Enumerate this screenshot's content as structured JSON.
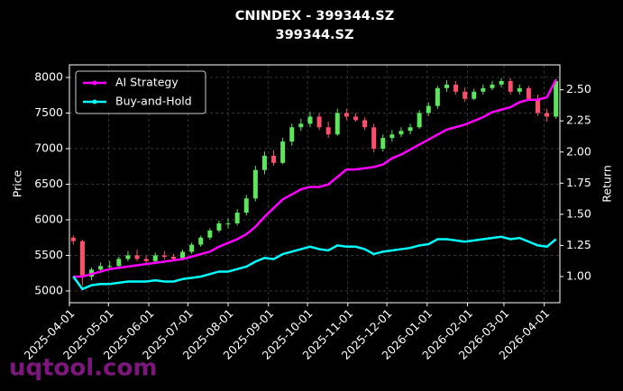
{
  "chart_data": {
    "type": "candlestick",
    "title": "CNINDEX - 399344.SZ",
    "subtitle": "399344.SZ",
    "y_label": "Price",
    "y2_label": "Return",
    "watermark": "uqtool.com",
    "x": [
      "2025-04-04",
      "2025-04-11",
      "2025-04-18",
      "2025-04-25",
      "2025-05-02",
      "2025-05-09",
      "2025-05-16",
      "2025-05-23",
      "2025-05-30",
      "2025-06-06",
      "2025-06-13",
      "2025-06-20",
      "2025-06-27",
      "2025-07-04",
      "2025-07-11",
      "2025-07-18",
      "2025-07-25",
      "2025-08-01",
      "2025-08-08",
      "2025-08-15",
      "2025-08-22",
      "2025-08-29",
      "2025-09-05",
      "2025-09-12",
      "2025-09-19",
      "2025-09-26",
      "2025-10-03",
      "2025-10-10",
      "2025-10-17",
      "2025-10-24",
      "2025-10-31",
      "2025-11-07",
      "2025-11-14",
      "2025-11-21",
      "2025-11-28",
      "2025-12-05",
      "2025-12-12",
      "2025-12-19",
      "2025-12-26",
      "2026-01-02",
      "2026-01-09",
      "2026-01-16",
      "2026-01-23",
      "2026-01-30",
      "2026-02-06",
      "2026-02-13",
      "2026-02-20",
      "2026-02-27",
      "2026-03-06",
      "2026-03-13",
      "2026-03-20",
      "2026-03-27",
      "2026-04-03",
      "2026-04-10"
    ],
    "open": [
      5750,
      5700,
      5200,
      5300,
      5350,
      5350,
      5450,
      5500,
      5450,
      5420,
      5500,
      5480,
      5450,
      5550,
      5650,
      5750,
      5850,
      5950,
      5950,
      6100,
      6300,
      6700,
      6900,
      6800,
      7100,
      7300,
      7350,
      7450,
      7300,
      7200,
      7500,
      7450,
      7400,
      7300,
      7000,
      7150,
      7200,
      7250,
      7300,
      7500,
      7600,
      7850,
      7900,
      7800,
      7700,
      7800,
      7850,
      7900,
      7950,
      7800,
      7850,
      7700,
      7500,
      7450
    ],
    "high": [
      5780,
      5720,
      5330,
      5400,
      5420,
      5480,
      5560,
      5580,
      5500,
      5540,
      5560,
      5520,
      5580,
      5680,
      5780,
      5880,
      5990,
      6020,
      6150,
      6350,
      6760,
      6960,
      6980,
      7150,
      7350,
      7420,
      7520,
      7500,
      7380,
      7560,
      7560,
      7500,
      7440,
      7350,
      7200,
      7260,
      7300,
      7350,
      7540,
      7650,
      7880,
      7960,
      7950,
      7860,
      7840,
      7900,
      7950,
      7990,
      7990,
      7900,
      7880,
      7760,
      7560,
      7980
    ],
    "low": [
      5650,
      5080,
      5150,
      5250,
      5300,
      5320,
      5420,
      5420,
      5380,
      5400,
      5440,
      5420,
      5430,
      5520,
      5620,
      5720,
      5820,
      5880,
      5920,
      6060,
      6260,
      6640,
      6760,
      6780,
      7040,
      7250,
      7300,
      7260,
      7150,
      7180,
      7400,
      7380,
      7260,
      6950,
      6960,
      7100,
      7160,
      7200,
      7280,
      7460,
      7560,
      7800,
      7760,
      7660,
      7680,
      7760,
      7820,
      7860,
      7760,
      7760,
      7680,
      7460,
      7380,
      7420
    ],
    "close": [
      5700,
      5200,
      5300,
      5350,
      5350,
      5450,
      5500,
      5450,
      5420,
      5500,
      5480,
      5450,
      5550,
      5650,
      5750,
      5850,
      5950,
      5950,
      6100,
      6300,
      6700,
      6900,
      6800,
      7100,
      7300,
      7350,
      7450,
      7300,
      7200,
      7500,
      7450,
      7400,
      7300,
      7000,
      7150,
      7200,
      7250,
      7300,
      7500,
      7600,
      7850,
      7900,
      7800,
      7700,
      7800,
      7850,
      7900,
      7950,
      7800,
      7850,
      7700,
      7500,
      7450,
      7950
    ],
    "up_color": "#5ce65c",
    "down_color": "#ff4d6d",
    "series": [
      {
        "name": "AI Strategy",
        "color": "#ff00ff",
        "axis": "y2",
        "values": [
          1.0,
          1.0,
          1.02,
          1.04,
          1.06,
          1.07,
          1.08,
          1.09,
          1.1,
          1.11,
          1.12,
          1.13,
          1.14,
          1.16,
          1.18,
          1.2,
          1.24,
          1.27,
          1.3,
          1.34,
          1.4,
          1.48,
          1.55,
          1.62,
          1.66,
          1.7,
          1.72,
          1.72,
          1.74,
          1.8,
          1.86,
          1.86,
          1.87,
          1.88,
          1.9,
          1.95,
          1.98,
          2.02,
          2.06,
          2.1,
          2.14,
          2.18,
          2.2,
          2.22,
          2.25,
          2.28,
          2.32,
          2.34,
          2.36,
          2.4,
          2.42,
          2.42,
          2.44,
          2.58
        ]
      },
      {
        "name": "Buy-and-Hold",
        "color": "#00ffff",
        "axis": "y2",
        "values": [
          1.0,
          0.9,
          0.93,
          0.94,
          0.94,
          0.95,
          0.96,
          0.96,
          0.96,
          0.97,
          0.96,
          0.96,
          0.98,
          0.99,
          1.0,
          1.02,
          1.04,
          1.04,
          1.06,
          1.08,
          1.12,
          1.15,
          1.14,
          1.18,
          1.2,
          1.22,
          1.24,
          1.22,
          1.21,
          1.25,
          1.24,
          1.24,
          1.22,
          1.18,
          1.2,
          1.21,
          1.22,
          1.23,
          1.25,
          1.26,
          1.3,
          1.3,
          1.29,
          1.28,
          1.29,
          1.3,
          1.31,
          1.32,
          1.3,
          1.31,
          1.28,
          1.25,
          1.24,
          1.3
        ]
      }
    ],
    "xlim": [
      "2025-04-01",
      "2026-04-13"
    ],
    "xticks": [
      "2025-04-01",
      "2025-05-01",
      "2025-06-01",
      "2025-07-01",
      "2025-08-01",
      "2025-09-01",
      "2025-10-01",
      "2025-11-01",
      "2025-12-01",
      "2026-01-01",
      "2026-02-01",
      "2026-03-01",
      "2026-04-01"
    ],
    "ylim": [
      4835,
      8177
    ],
    "yticks": [
      5000,
      5500,
      6000,
      6500,
      7000,
      7500,
      8000
    ],
    "y2lim": [
      0.79,
      2.7
    ],
    "y2ticks": [
      {
        "value": 1,
        "label": "1.00"
      },
      1.25,
      {
        "value": 1.5,
        "label": "1.50"
      },
      1.75,
      {
        "value": 2,
        "label": "2.00"
      },
      2.25,
      {
        "value": 2.5,
        "label": "2.50"
      }
    ],
    "grid": true,
    "legend": "upper left"
  }
}
